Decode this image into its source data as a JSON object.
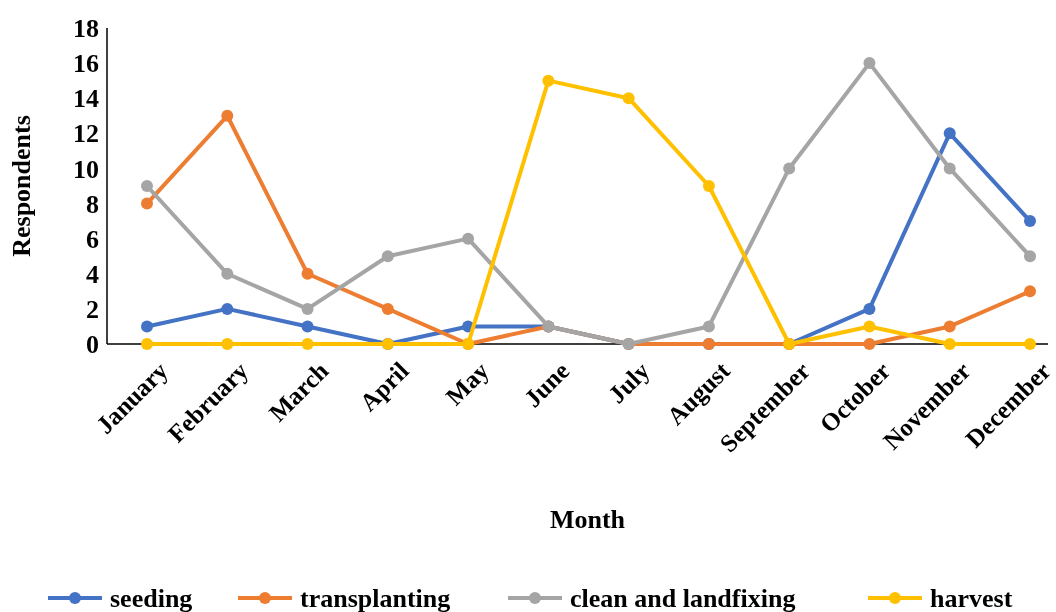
{
  "chart_data": {
    "type": "line",
    "xlabel": "Month",
    "ylabel": "Respondents",
    "categories": [
      "January",
      "February",
      "March",
      "April",
      "May",
      "June",
      "July",
      "August",
      "September",
      "October",
      "November",
      "December"
    ],
    "series": [
      {
        "name": "seeding",
        "color": "#4472c4",
        "values": [
          1,
          2,
          1,
          0,
          1,
          1,
          0,
          0,
          0,
          2,
          12,
          7
        ]
      },
      {
        "name": "transplanting",
        "color": "#ed7d31",
        "values": [
          8,
          13,
          4,
          2,
          0,
          1,
          0,
          0,
          0,
          0,
          1,
          3
        ]
      },
      {
        "name": "clean and landfixing",
        "color": "#a5a5a5",
        "values": [
          9,
          4,
          2,
          5,
          6,
          1,
          0,
          1,
          10,
          16,
          10,
          5
        ]
      },
      {
        "name": "harvest",
        "color": "#ffc000",
        "values": [
          0,
          0,
          0,
          0,
          0,
          15,
          14,
          9,
          0,
          1,
          0,
          0
        ]
      }
    ],
    "ylim": [
      0,
      18
    ],
    "yticks": [
      0,
      2,
      4,
      6,
      8,
      10,
      12,
      14,
      16,
      18
    ],
    "grid": false,
    "legend": "bottom",
    "marker": "circle",
    "line_style": "solid"
  }
}
